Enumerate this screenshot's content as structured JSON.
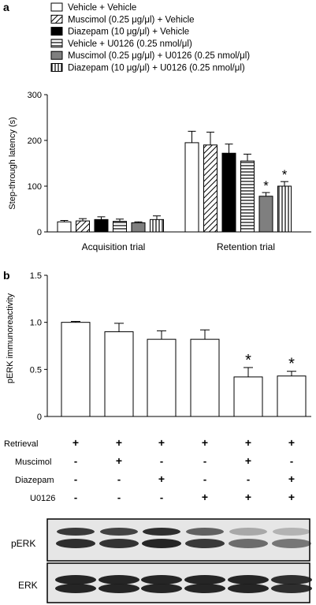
{
  "chart_data": [
    {
      "panel": "a",
      "type": "bar",
      "title": "",
      "ylabel": "Step-through latency (s)",
      "xlabel": "",
      "ylim": [
        0,
        300
      ],
      "yticks": [
        "0",
        "100",
        "200",
        "300"
      ],
      "categories": [
        "Acquisition trial",
        "Retention trial"
      ],
      "legend_placement": "top",
      "series": [
        {
          "name": "Vehicle + Vehicle",
          "pattern": "white",
          "values": [
            22,
            195
          ],
          "errors": [
            3,
            25
          ]
        },
        {
          "name": "Muscimol (0.25 μg/μl) + Vehicle",
          "pattern": "diagonal-hatch",
          "values": [
            24,
            190
          ],
          "errors": [
            5,
            28
          ]
        },
        {
          "name": "Diazepam (10 μg/μl) + Vehicle",
          "pattern": "black",
          "values": [
            27,
            172
          ],
          "errors": [
            6,
            20
          ]
        },
        {
          "name": "Vehicle + U0126 (0.25 nmol/μl)",
          "pattern": "horizontal-lines",
          "values": [
            23,
            155
          ],
          "errors": [
            5,
            15
          ]
        },
        {
          "name": "Muscimol (0.25 μg/μl) + U0126 (0.25 nmol/μl)",
          "pattern": "gray",
          "values": [
            20,
            78
          ],
          "errors": [
            2,
            8
          ]
        },
        {
          "name": "Diazepam (10 μg/μl) + U0126 (0.25 nmol/μl)",
          "pattern": "vertical-lines",
          "values": [
            27,
            100
          ],
          "errors": [
            8,
            10
          ]
        }
      ],
      "significance": [
        {
          "category": "Retention trial",
          "series": 4,
          "label": "*"
        },
        {
          "category": "Retention trial",
          "series": 5,
          "label": "*"
        }
      ]
    },
    {
      "panel": "b",
      "type": "bar",
      "title": "",
      "ylabel": "pERK immunoreactivity",
      "xlabel": "",
      "ylim": [
        0,
        1.5
      ],
      "yticks": [
        "0",
        "0.5",
        "1.0",
        "1.5"
      ],
      "values": [
        1.0,
        0.9,
        0.82,
        0.82,
        0.42,
        0.43
      ],
      "errors": [
        0.01,
        0.09,
        0.09,
        0.1,
        0.1,
        0.05
      ],
      "significance": [
        {
          "index": 4,
          "label": "*"
        },
        {
          "index": 5,
          "label": "*"
        }
      ],
      "condition_rows": [
        {
          "label": "Retrieval",
          "signs": [
            "+",
            "+",
            "+",
            "+",
            "+",
            "+"
          ]
        },
        {
          "label": "Muscimol",
          "signs": [
            "-",
            "+",
            "-",
            "-",
            "+",
            "-"
          ]
        },
        {
          "label": "Diazepam",
          "signs": [
            "-",
            "-",
            "+",
            "-",
            "-",
            "+"
          ]
        },
        {
          "label": "U0126",
          "signs": [
            "-",
            "-",
            "-",
            "+",
            "+",
            "+"
          ]
        }
      ],
      "blots": [
        {
          "label": "pERK",
          "bands": [
            [
              0.85,
              0.9
            ],
            [
              0.8,
              0.88
            ],
            [
              0.9,
              0.95
            ],
            [
              0.65,
              0.85
            ],
            [
              0.3,
              0.6
            ],
            [
              0.25,
              0.55
            ]
          ]
        },
        {
          "label": "ERK",
          "bands": [
            [
              0.95,
              0.95
            ],
            [
              0.95,
              0.95
            ],
            [
              0.95,
              0.95
            ],
            [
              0.95,
              0.95
            ],
            [
              0.95,
              0.95
            ],
            [
              0.9,
              0.9
            ]
          ]
        }
      ]
    }
  ],
  "panel_labels": [
    "a",
    "b"
  ],
  "colors": {
    "black": "#000000",
    "gray": "#7f7f7f",
    "white": "#ffffff",
    "blot_background": "#e6e6e6",
    "band": "#1a1a1a"
  }
}
